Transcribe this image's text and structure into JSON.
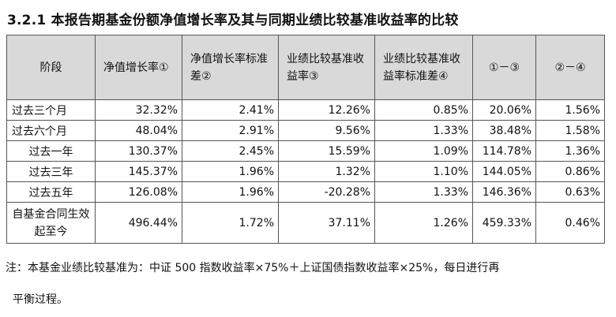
{
  "title": "3.2.1 本报告期基金份额净值增长率及其与同期业绩比较基准收益率的比较",
  "table": {
    "headers": [
      "阶段",
      "净值增长率①",
      "净值增长率标准差②",
      "业绩比较基准收益率③",
      "业绩比较基准收益率标准差④",
      "①－③",
      "②－④"
    ],
    "rows": [
      {
        "period": "过去三个月",
        "values": [
          "32.32%",
          "2.41%",
          "12.26%",
          "0.85%",
          "20.06%",
          "1.56%"
        ]
      },
      {
        "period": "过去六个月",
        "values": [
          "48.04%",
          "2.91%",
          "9.56%",
          "1.33%",
          "38.48%",
          "1.58%"
        ]
      },
      {
        "period": "过去一年",
        "values": [
          "130.37%",
          "2.45%",
          "15.59%",
          "1.09%",
          "114.78%",
          "1.36%"
        ]
      },
      {
        "period": "过去三年",
        "values": [
          "145.37%",
          "1.96%",
          "1.32%",
          "1.10%",
          "144.05%",
          "0.86%"
        ]
      },
      {
        "period": "过去五年",
        "values": [
          "126.08%",
          "1.96%",
          "-20.28%",
          "1.33%",
          "146.36%",
          "0.63%"
        ]
      },
      {
        "period": "自基金合同生效起至今",
        "values": [
          "496.44%",
          "1.72%",
          "37.11%",
          "1.26%",
          "459.33%",
          "0.46%"
        ]
      }
    ]
  },
  "note": {
    "line1": "注：本基金业绩比较基准为：中证 500 指数收益率×75%＋上证国债指数收益率×25%，每日进行再",
    "line2": "平衡过程。"
  }
}
